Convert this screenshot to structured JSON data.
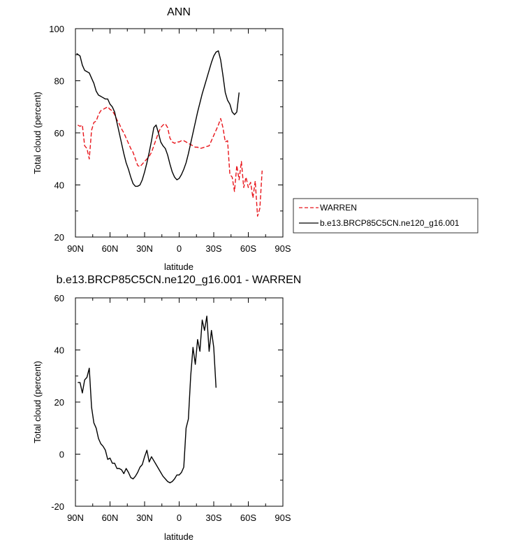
{
  "chart_data": [
    {
      "type": "line",
      "title": "ANN",
      "xlabel": "latitude",
      "ylabel": "Total cloud (percent)",
      "xlim": [
        90,
        -90
      ],
      "ylim": [
        20,
        100
      ],
      "xticks": [
        {
          "value": 90,
          "label": "90N"
        },
        {
          "value": 60,
          "label": "60N"
        },
        {
          "value": 30,
          "label": "30N"
        },
        {
          "value": 0,
          "label": "0"
        },
        {
          "value": -30,
          "label": "30S"
        },
        {
          "value": -60,
          "label": "60S"
        },
        {
          "value": -90,
          "label": "90S"
        }
      ],
      "yticks": [
        20,
        40,
        60,
        80,
        100
      ],
      "legend_position": "right",
      "series": [
        {
          "name": "WARREN",
          "color": "#e8141a",
          "dash": "dashed",
          "points": [
            [
              88,
              63
            ],
            [
              86,
              62.5
            ],
            [
              84,
              63
            ],
            [
              82,
              55
            ],
            [
              80,
              54
            ],
            [
              78,
              50
            ],
            [
              76,
              61
            ],
            [
              74,
              64
            ],
            [
              72,
              64.5
            ],
            [
              70,
              67
            ],
            [
              68,
              68.5
            ],
            [
              66,
              69
            ],
            [
              64,
              69.5
            ],
            [
              62,
              70
            ],
            [
              60,
              69
            ],
            [
              58,
              68.5
            ],
            [
              56,
              67
            ],
            [
              54,
              65
            ],
            [
              52,
              63.5
            ],
            [
              50,
              61.5
            ],
            [
              48,
              60
            ],
            [
              46,
              58
            ],
            [
              44,
              56
            ],
            [
              42,
              54
            ],
            [
              40,
              52.5
            ],
            [
              38,
              50
            ],
            [
              36,
              47.5
            ],
            [
              34,
              47
            ],
            [
              32,
              48
            ],
            [
              30,
              49
            ],
            [
              28,
              50
            ],
            [
              26,
              51
            ],
            [
              24,
              52.5
            ],
            [
              22,
              55
            ],
            [
              20,
              57.5
            ],
            [
              18,
              60
            ],
            [
              16,
              62
            ],
            [
              14,
              63
            ],
            [
              12,
              63.5
            ],
            [
              10,
              62
            ],
            [
              8,
              58
            ],
            [
              6,
              56.5
            ],
            [
              4,
              56
            ],
            [
              2,
              56.5
            ],
            [
              0,
              56.5
            ],
            [
              -2,
              57
            ],
            [
              -4,
              57
            ],
            [
              -6,
              56.5
            ],
            [
              -8,
              56
            ],
            [
              -10,
              55.5
            ],
            [
              -12,
              55
            ],
            [
              -14,
              54.5
            ],
            [
              -16,
              54.5
            ],
            [
              -18,
              54
            ],
            [
              -20,
              54.2
            ],
            [
              -22,
              54.5
            ],
            [
              -24,
              54.8
            ],
            [
              -26,
              55
            ],
            [
              -28,
              57
            ],
            [
              -30,
              59
            ],
            [
              -32,
              61
            ],
            [
              -34,
              63
            ],
            [
              -36,
              65.5
            ],
            [
              -38,
              62
            ],
            [
              -40,
              56.5
            ],
            [
              -42,
              57
            ],
            [
              -44,
              44
            ],
            [
              -46,
              43
            ],
            [
              -48,
              37.5
            ],
            [
              -50,
              47.5
            ],
            [
              -52,
              42
            ],
            [
              -54,
              49
            ],
            [
              -56,
              39
            ],
            [
              -58,
              43
            ],
            [
              -60,
              39
            ],
            [
              -62,
              41
            ],
            [
              -64,
              35
            ],
            [
              -66,
              41.5
            ],
            [
              -68,
              28
            ],
            [
              -70,
              31
            ],
            [
              -72,
              45.5
            ]
          ]
        },
        {
          "name": "b.e13.BRCP85C5CN.ne120_g16.001",
          "color": "#000000",
          "dash": "solid",
          "points": [
            [
              89,
              90.5
            ],
            [
              86,
              89.5
            ],
            [
              84,
              86
            ],
            [
              82,
              84
            ],
            [
              80,
              83.5
            ],
            [
              78,
              83
            ],
            [
              76,
              81
            ],
            [
              74,
              79
            ],
            [
              72,
              76
            ],
            [
              70,
              74.5
            ],
            [
              68,
              74
            ],
            [
              66,
              73.5
            ],
            [
              64,
              73
            ],
            [
              62,
              73
            ],
            [
              60,
              71
            ],
            [
              58,
              70
            ],
            [
              56,
              68
            ],
            [
              54,
              64
            ],
            [
              52,
              60
            ],
            [
              50,
              56
            ],
            [
              48,
              52
            ],
            [
              46,
              48.5
            ],
            [
              44,
              46
            ],
            [
              42,
              43
            ],
            [
              40,
              40.5
            ],
            [
              38,
              39.5
            ],
            [
              36,
              39.5
            ],
            [
              34,
              40
            ],
            [
              32,
              42
            ],
            [
              30,
              45
            ],
            [
              28,
              48.5
            ],
            [
              26,
              52.5
            ],
            [
              24,
              57
            ],
            [
              22,
              62
            ],
            [
              20,
              63
            ],
            [
              18,
              60
            ],
            [
              16,
              56.5
            ],
            [
              14,
              55
            ],
            [
              12,
              54
            ],
            [
              10,
              51.5
            ],
            [
              8,
              48
            ],
            [
              6,
              45
            ],
            [
              4,
              43
            ],
            [
              2,
              42
            ],
            [
              0,
              42.5
            ],
            [
              -2,
              44
            ],
            [
              -4,
              46
            ],
            [
              -6,
              48.5
            ],
            [
              -8,
              52
            ],
            [
              -10,
              56
            ],
            [
              -12,
              60
            ],
            [
              -14,
              64
            ],
            [
              -16,
              68
            ],
            [
              -18,
              71.5
            ],
            [
              -20,
              75
            ],
            [
              -22,
              78
            ],
            [
              -24,
              81
            ],
            [
              -26,
              84
            ],
            [
              -28,
              87
            ],
            [
              -30,
              89.5
            ],
            [
              -32,
              91
            ],
            [
              -34,
              91.5
            ],
            [
              -36,
              88
            ],
            [
              -38,
              82
            ],
            [
              -40,
              75.5
            ],
            [
              -42,
              72.5
            ],
            [
              -44,
              71
            ],
            [
              -46,
              68
            ],
            [
              -48,
              67
            ],
            [
              -50,
              68
            ],
            [
              -52,
              75.5
            ]
          ]
        }
      ]
    },
    {
      "type": "line",
      "title": "b.e13.BRCP85C5CN.ne120_g16.001 - WARREN",
      "xlabel": "latitude",
      "ylabel": "Total cloud (percent)",
      "xlim": [
        90,
        -90
      ],
      "ylim": [
        -20,
        60
      ],
      "xticks": [
        {
          "value": 90,
          "label": "90N"
        },
        {
          "value": 60,
          "label": "60N"
        },
        {
          "value": 30,
          "label": "30N"
        },
        {
          "value": 0,
          "label": "0"
        },
        {
          "value": -30,
          "label": "30S"
        },
        {
          "value": -60,
          "label": "60S"
        },
        {
          "value": -90,
          "label": "90S"
        }
      ],
      "yticks": [
        -20,
        0,
        20,
        40,
        60
      ],
      "series": [
        {
          "color": "#000000",
          "dash": "solid",
          "points": [
            [
              88,
              27.5
            ],
            [
              86,
              27.5
            ],
            [
              84,
              23.5
            ],
            [
              82,
              28.5
            ],
            [
              80,
              29.5
            ],
            [
              78,
              33
            ],
            [
              76,
              18
            ],
            [
              74,
              12
            ],
            [
              72,
              10
            ],
            [
              70,
              6
            ],
            [
              68,
              4
            ],
            [
              66,
              3
            ],
            [
              64,
              1.5
            ],
            [
              62,
              -2
            ],
            [
              60,
              -1.5
            ],
            [
              58,
              -3.5
            ],
            [
              56,
              -3.5
            ],
            [
              54,
              -5.5
            ],
            [
              52,
              -5.5
            ],
            [
              50,
              -6
            ],
            [
              48,
              -7.5
            ],
            [
              46,
              -5.5
            ],
            [
              44,
              -7
            ],
            [
              42,
              -9
            ],
            [
              40,
              -9.5
            ],
            [
              38,
              -8.5
            ],
            [
              36,
              -7
            ],
            [
              34,
              -5
            ],
            [
              32,
              -4
            ],
            [
              30,
              -1
            ],
            [
              28,
              1.5
            ],
            [
              26,
              -3
            ],
            [
              24,
              -1
            ],
            [
              22,
              -2.5
            ],
            [
              20,
              -4
            ],
            [
              18,
              -5.5
            ],
            [
              16,
              -7
            ],
            [
              14,
              -8.5
            ],
            [
              12,
              -9.5
            ],
            [
              10,
              -10.5
            ],
            [
              8,
              -11
            ],
            [
              6,
              -10.5
            ],
            [
              4,
              -9.5
            ],
            [
              2,
              -8
            ],
            [
              0,
              -8
            ],
            [
              -2,
              -7
            ],
            [
              -4,
              -5
            ],
            [
              -6,
              10
            ],
            [
              -8,
              13.5
            ],
            [
              -10,
              30
            ],
            [
              -12,
              41
            ],
            [
              -14,
              34.5
            ],
            [
              -16,
              44
            ],
            [
              -18,
              39.5
            ],
            [
              -20,
              51.5
            ],
            [
              -22,
              47.5
            ],
            [
              -24,
              53
            ],
            [
              -26,
              39.5
            ],
            [
              -28,
              47.5
            ],
            [
              -30,
              41
            ],
            [
              -32,
              25.5
            ]
          ]
        }
      ]
    }
  ]
}
